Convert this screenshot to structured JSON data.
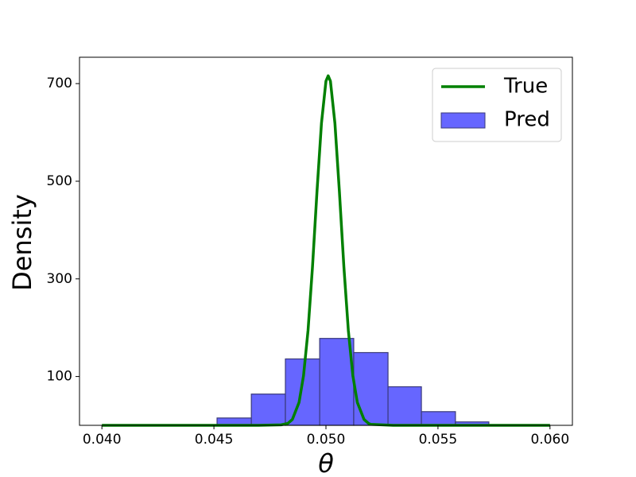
{
  "chart_data": {
    "type": "histogram",
    "xlabel": "θ",
    "ylabel": "Density",
    "xlim": [
      0.039,
      0.061
    ],
    "ylim": [
      0,
      754
    ],
    "xticks": [
      {
        "value": 0.04,
        "label": "0.040"
      },
      {
        "value": 0.045,
        "label": "0.045"
      },
      {
        "value": 0.05,
        "label": "0.050"
      },
      {
        "value": 0.055,
        "label": "0.055"
      },
      {
        "value": 0.06,
        "label": "0.060"
      }
    ],
    "yticks": [
      100,
      300,
      500,
      700
    ],
    "legend": "upper right",
    "layers": [
      {
        "type": "histogram",
        "name": "Pred",
        "color": "#6666ff",
        "edgecolor": "#3a3a7a",
        "bins": [
          0.04514,
          0.04667,
          0.04819,
          0.04972,
          0.05124,
          0.05277,
          0.05426,
          0.05578,
          0.05727
        ],
        "counts": [
          15,
          64,
          136,
          178,
          149,
          79,
          28,
          7
        ]
      },
      {
        "type": "line",
        "name": "True",
        "color": "#008000",
        "x": [
          0.04,
          0.045,
          0.047,
          0.048,
          0.0483,
          0.0485,
          0.0488,
          0.049,
          0.0492,
          0.0494,
          0.0496,
          0.0498,
          0.05,
          0.0501,
          0.0502,
          0.0504,
          0.0506,
          0.0508,
          0.051,
          0.0512,
          0.0514,
          0.0517,
          0.0519,
          0.052,
          0.053,
          0.055,
          0.06
        ],
        "values": [
          0,
          0,
          0,
          1,
          4,
          12,
          47,
          102,
          194,
          325,
          479,
          619,
          705,
          716,
          705,
          619,
          479,
          325,
          194,
          102,
          47,
          12,
          4,
          2,
          0,
          0,
          0
        ]
      }
    ]
  }
}
